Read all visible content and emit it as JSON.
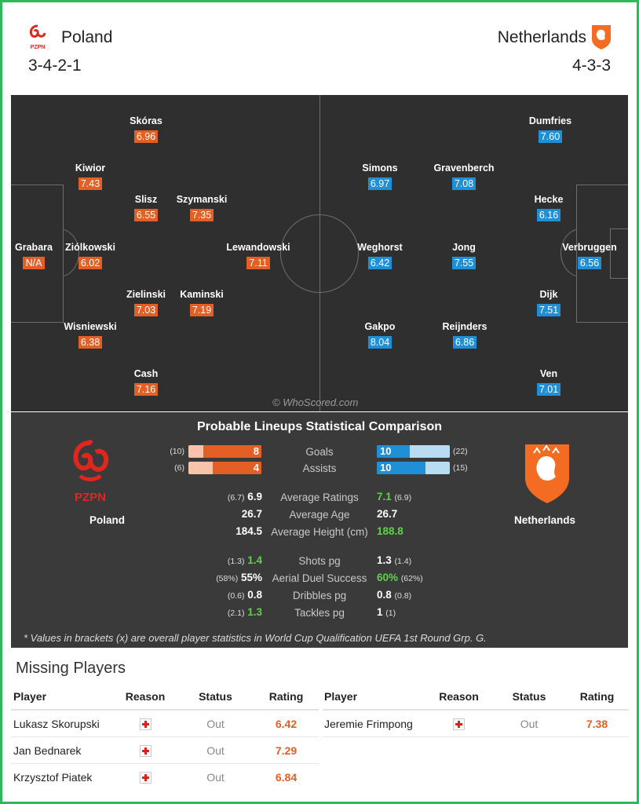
{
  "colors": {
    "frame": "#2eb85c",
    "home_rating": "#e35f23",
    "away_rating": "#1f8fd8",
    "pitch": "#2f2f2f",
    "stats_bg": "#3a3a3a",
    "better_value": "#5ed34a"
  },
  "header": {
    "home": {
      "name": "Poland",
      "formation": "3-4-2-1",
      "crest_icon": "pzpn-crest-icon"
    },
    "away": {
      "name": "Netherlands",
      "formation": "4-3-3",
      "crest_icon": "knvb-lion-crest-icon"
    }
  },
  "pitch": {
    "watermark": "© WhoScored.com",
    "home_players": [
      {
        "name": "Skóras",
        "rating": "6.96"
      },
      {
        "name": "Kiwior",
        "rating": "7.43"
      },
      {
        "name": "Slisz",
        "rating": "6.55"
      },
      {
        "name": "Szymanski",
        "rating": "7.35"
      },
      {
        "name": "Grabara",
        "rating": "N/A"
      },
      {
        "name": "Ziólkowski",
        "rating": "6.02"
      },
      {
        "name": "Lewandowski",
        "rating": "7.11"
      },
      {
        "name": "Zielinski",
        "rating": "7.03"
      },
      {
        "name": "Kaminski",
        "rating": "7.19"
      },
      {
        "name": "Wisniewski",
        "rating": "6.38"
      },
      {
        "name": "Cash",
        "rating": "7.16"
      }
    ],
    "away_players": [
      {
        "name": "Dumfries",
        "rating": "7.60"
      },
      {
        "name": "Simons",
        "rating": "6.97"
      },
      {
        "name": "Gravenberch",
        "rating": "7.08"
      },
      {
        "name": "Hecke",
        "rating": "6.16"
      },
      {
        "name": "Weghorst",
        "rating": "6.42"
      },
      {
        "name": "Jong",
        "rating": "7.55"
      },
      {
        "name": "Verbruggen",
        "rating": "6.56"
      },
      {
        "name": "Dijk",
        "rating": "7.51"
      },
      {
        "name": "Gakpo",
        "rating": "8.04"
      },
      {
        "name": "Reijnders",
        "rating": "6.86"
      },
      {
        "name": "Ven",
        "rating": "7.01"
      }
    ]
  },
  "comparison": {
    "title": "Probable Lineups Statistical Comparison",
    "home_name": "Poland",
    "away_name": "Netherlands",
    "home_crest_label": "PZPN",
    "goals": {
      "label": "Goals",
      "home": "8",
      "home_overall": "(10)",
      "away": "10",
      "away_overall": "(22)",
      "home_frac": 0.8,
      "away_frac": 0.45
    },
    "assists": {
      "label": "Assists",
      "home": "4",
      "home_overall": "(6)",
      "away": "10",
      "away_overall": "(15)",
      "home_frac": 0.67,
      "away_frac": 0.67
    },
    "rows": [
      {
        "label": "Average Ratings",
        "home_b": "(6.7)",
        "home": "6.9",
        "away": "7.1",
        "away_b": "(6.9)",
        "better": "away"
      },
      {
        "label": "Average Age",
        "home_b": "",
        "home": "26.7",
        "away": "26.7",
        "away_b": "",
        "better": "none"
      },
      {
        "label": "Average Height (cm)",
        "home_b": "",
        "home": "184.5",
        "away": "188.8",
        "away_b": "",
        "better": "away"
      },
      {
        "label": "Shots pg",
        "home_b": "(1.3)",
        "home": "1.4",
        "away": "1.3",
        "away_b": "(1.4)",
        "better": "home"
      },
      {
        "label": "Aerial Duel Success",
        "home_b": "(58%)",
        "home": "55%",
        "away": "60%",
        "away_b": "(62%)",
        "better": "away"
      },
      {
        "label": "Dribbles pg",
        "home_b": "(0.6)",
        "home": "0.8",
        "away": "0.8",
        "away_b": "(0.8)",
        "better": "none"
      },
      {
        "label": "Tackles pg",
        "home_b": "(2.1)",
        "home": "1.3",
        "away": "1",
        "away_b": "(1)",
        "better": "home"
      }
    ],
    "footnote": "* Values in brackets (x) are overall player statistics in World Cup Qualification UEFA 1st Round Grp. G."
  },
  "missing": {
    "title": "Missing Players",
    "headers": {
      "player": "Player",
      "reason": "Reason",
      "status": "Status",
      "rating": "Rating"
    },
    "home": [
      {
        "player": "Lukasz Skorupski",
        "status": "Out",
        "rating": "6.42",
        "reason_icon": "injury-icon"
      },
      {
        "player": "Jan Bednarek",
        "status": "Out",
        "rating": "7.29",
        "reason_icon": "injury-icon"
      },
      {
        "player": "Krzysztof Piatek",
        "status": "Out",
        "rating": "6.84",
        "reason_icon": "injury-icon"
      }
    ],
    "away": [
      {
        "player": "Jeremie Frimpong",
        "status": "Out",
        "rating": "7.38",
        "reason_icon": "injury-icon"
      }
    ]
  }
}
